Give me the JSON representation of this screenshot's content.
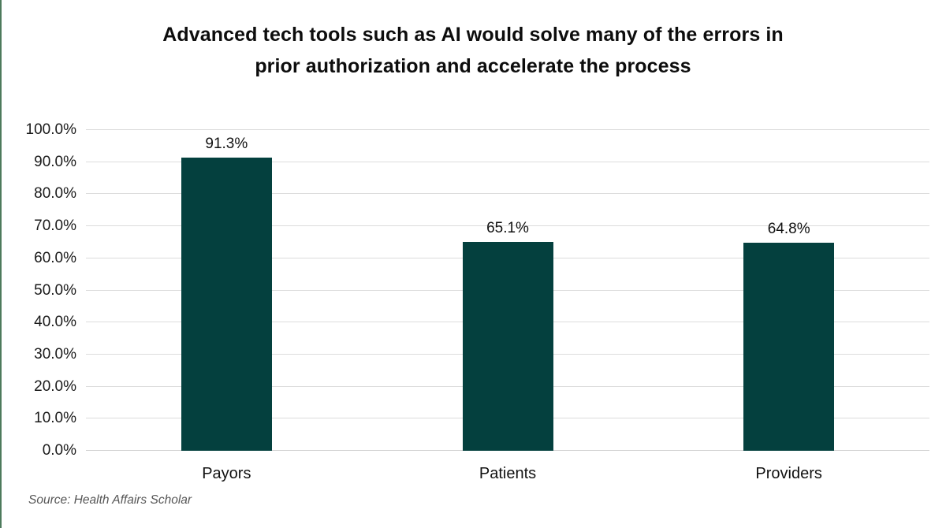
{
  "page": {
    "border_left_color": "#4d7a5c"
  },
  "title": {
    "line1": "Advanced tech tools such as AI would solve many of the errors in",
    "line2": "prior authorization and accelerate the process"
  },
  "source_note": "Source: Health Affairs Scholar",
  "chart_data": {
    "type": "bar",
    "title": "Advanced tech tools such as AI would solve many of the errors in prior authorization and accelerate the process",
    "categories": [
      "Payors",
      "Patients",
      "Providers"
    ],
    "values": [
      91.3,
      65.1,
      64.8
    ],
    "value_labels": [
      "91.3%",
      "65.1%",
      "64.8%"
    ],
    "xlabel": "",
    "ylabel": "",
    "ylim": [
      0,
      100
    ],
    "ytick_step": 10,
    "ytick_labels": [
      "0.0%",
      "10.0%",
      "20.0%",
      "30.0%",
      "40.0%",
      "50.0%",
      "60.0%",
      "70.0%",
      "80.0%",
      "90.0%",
      "100.0%"
    ],
    "grid": true,
    "legend": false,
    "bar_color": "#04403e",
    "grid_color": "#dcdcdc"
  }
}
